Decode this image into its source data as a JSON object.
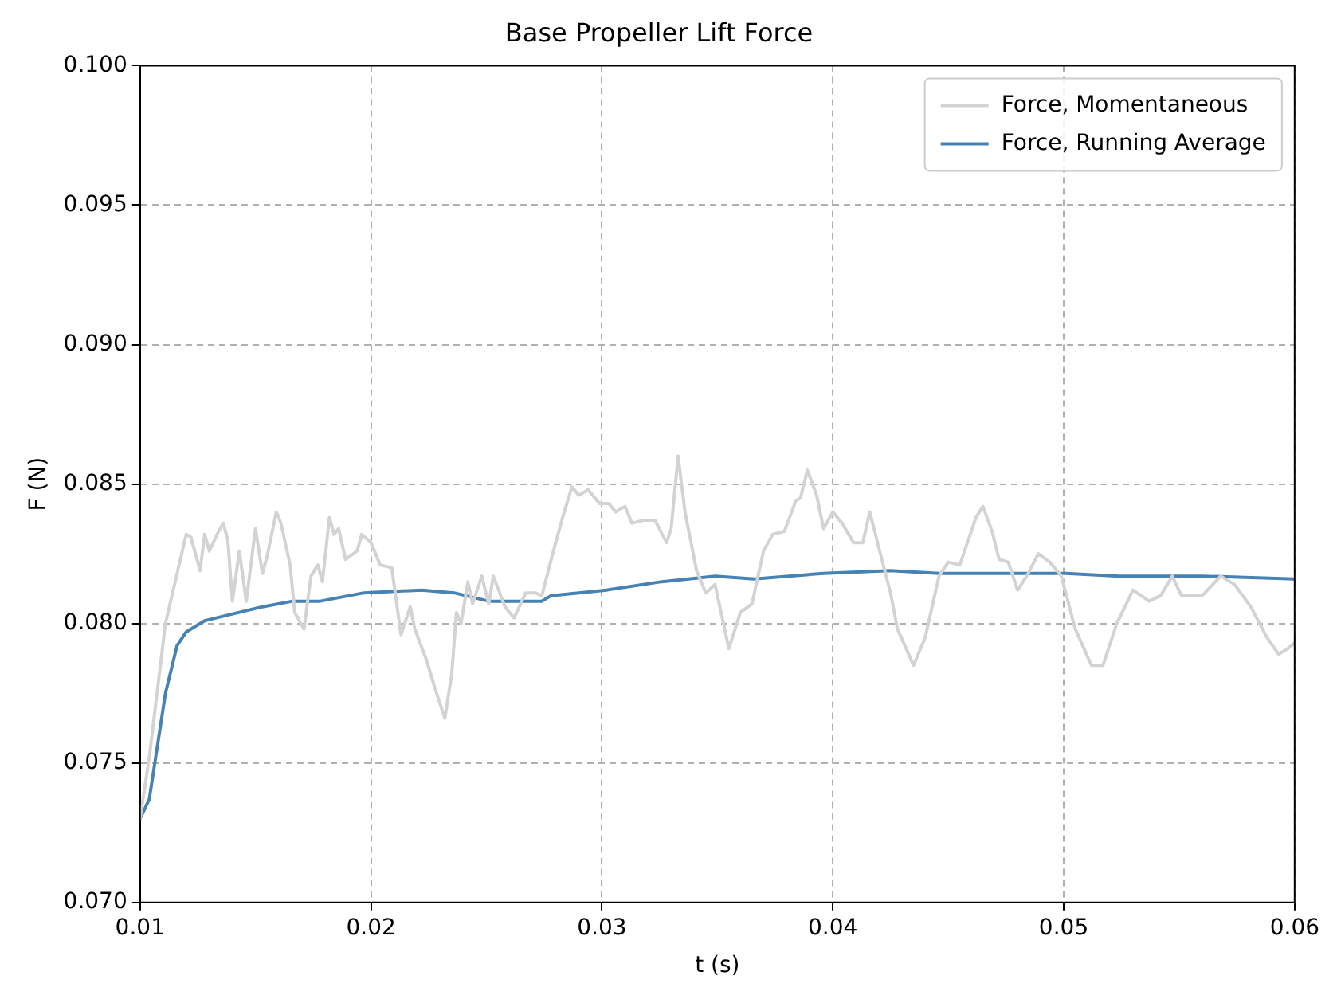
{
  "chart_data": {
    "type": "line",
    "title": "Base Propeller Lift Force",
    "xlabel": "t (s)",
    "ylabel": "F (N)",
    "xlim": [
      0.01,
      0.06
    ],
    "xticks": [
      0.01,
      0.02,
      0.03,
      0.04,
      0.05,
      0.06
    ],
    "ylim": [
      0.07,
      0.1
    ],
    "yticks": [
      {
        "value": 0.07,
        "label": "0.070"
      },
      0.075,
      {
        "value": 0.08,
        "label": "0.080"
      },
      0.085,
      {
        "value": 0.09,
        "label": "0.090"
      },
      0.095,
      {
        "value": 0.1,
        "label": "0.100"
      }
    ],
    "grid": true,
    "legend": "top right",
    "marker": "none",
    "line_style": "solid",
    "series": [
      {
        "name": "Force, Momentaneous",
        "color": "#d3d3d3",
        "x": [
          0.01,
          0.0104,
          0.0111,
          0.012,
          0.0122,
          0.0126,
          0.0128,
          0.013,
          0.0134,
          0.0136,
          0.0138,
          0.014,
          0.0143,
          0.0146,
          0.015,
          0.0153,
          0.0155,
          0.0159,
          0.0161,
          0.0165,
          0.0167,
          0.0171,
          0.0174,
          0.0177,
          0.0179,
          0.0182,
          0.0184,
          0.0186,
          0.0189,
          0.0194,
          0.0196,
          0.02,
          0.0204,
          0.0209,
          0.0213,
          0.0217,
          0.0219,
          0.0224,
          0.0228,
          0.0232,
          0.0235,
          0.0237,
          0.0239,
          0.0242,
          0.0244,
          0.0248,
          0.0251,
          0.0253,
          0.0258,
          0.0262,
          0.0267,
          0.0271,
          0.0274,
          0.0279,
          0.0283,
          0.0287,
          0.029,
          0.0294,
          0.0299,
          0.0303,
          0.0306,
          0.031,
          0.0313,
          0.0318,
          0.0323,
          0.0328,
          0.033,
          0.0333,
          0.0336,
          0.0341,
          0.0345,
          0.0349,
          0.0355,
          0.036,
          0.0365,
          0.037,
          0.0374,
          0.0379,
          0.0384,
          0.0386,
          0.0389,
          0.0393,
          0.0396,
          0.04,
          0.0404,
          0.0409,
          0.0413,
          0.0416,
          0.042,
          0.0425,
          0.0428,
          0.0435,
          0.044,
          0.0446,
          0.045,
          0.0455,
          0.0462,
          0.0465,
          0.0469,
          0.0472,
          0.0476,
          0.048,
          0.0484,
          0.0489,
          0.0494,
          0.0499,
          0.0505,
          0.0512,
          0.0517,
          0.0523,
          0.053,
          0.0537,
          0.0542,
          0.0547,
          0.0551,
          0.056,
          0.0568,
          0.0574,
          0.0581,
          0.0588,
          0.0593,
          0.0597,
          0.06
        ],
        "values": [
          0.073,
          0.0752,
          0.08,
          0.0832,
          0.0831,
          0.0819,
          0.0832,
          0.0826,
          0.0833,
          0.0836,
          0.083,
          0.0808,
          0.0826,
          0.0808,
          0.0834,
          0.0818,
          0.0824,
          0.084,
          0.0836,
          0.0821,
          0.0804,
          0.0798,
          0.0817,
          0.0821,
          0.0815,
          0.0838,
          0.0832,
          0.0834,
          0.0823,
          0.0826,
          0.0832,
          0.0829,
          0.0821,
          0.082,
          0.0796,
          0.0806,
          0.0798,
          0.0787,
          0.0776,
          0.0766,
          0.0782,
          0.0804,
          0.08,
          0.0815,
          0.0807,
          0.0817,
          0.0807,
          0.0817,
          0.0806,
          0.0802,
          0.0811,
          0.0811,
          0.081,
          0.0826,
          0.0838,
          0.0849,
          0.0846,
          0.0848,
          0.0843,
          0.0843,
          0.084,
          0.0842,
          0.0836,
          0.0837,
          0.0837,
          0.0829,
          0.0834,
          0.086,
          0.084,
          0.0819,
          0.0811,
          0.0814,
          0.0791,
          0.0804,
          0.0807,
          0.0826,
          0.0832,
          0.0833,
          0.0844,
          0.0845,
          0.0855,
          0.0846,
          0.0834,
          0.084,
          0.0836,
          0.0829,
          0.0829,
          0.084,
          0.0827,
          0.0811,
          0.0798,
          0.0785,
          0.0795,
          0.0817,
          0.0822,
          0.0821,
          0.0838,
          0.0842,
          0.0833,
          0.0823,
          0.0822,
          0.0812,
          0.0817,
          0.0825,
          0.0822,
          0.0817,
          0.0798,
          0.0785,
          0.0785,
          0.08,
          0.0812,
          0.0808,
          0.081,
          0.0817,
          0.081,
          0.081,
          0.0817,
          0.0814,
          0.0806,
          0.0795,
          0.0789,
          0.0791,
          0.0793
        ]
      },
      {
        "name": "Force, Running Average",
        "color": "#4682b4",
        "x": [
          0.01,
          0.0104,
          0.0111,
          0.0116,
          0.012,
          0.0128,
          0.0138,
          0.0153,
          0.0166,
          0.0178,
          0.0197,
          0.0222,
          0.0236,
          0.0251,
          0.0274,
          0.0278,
          0.0302,
          0.0326,
          0.0349,
          0.0366,
          0.0396,
          0.0425,
          0.0446,
          0.0477,
          0.0501,
          0.0524,
          0.056,
          0.06
        ],
        "values": [
          0.073,
          0.0737,
          0.0775,
          0.0792,
          0.0797,
          0.0801,
          0.0803,
          0.0806,
          0.0808,
          0.0808,
          0.0811,
          0.0812,
          0.0811,
          0.0808,
          0.0808,
          0.081,
          0.0812,
          0.0815,
          0.0817,
          0.0816,
          0.0818,
          0.0819,
          0.0818,
          0.0818,
          0.0818,
          0.0817,
          0.0817,
          0.0816
        ]
      }
    ]
  }
}
